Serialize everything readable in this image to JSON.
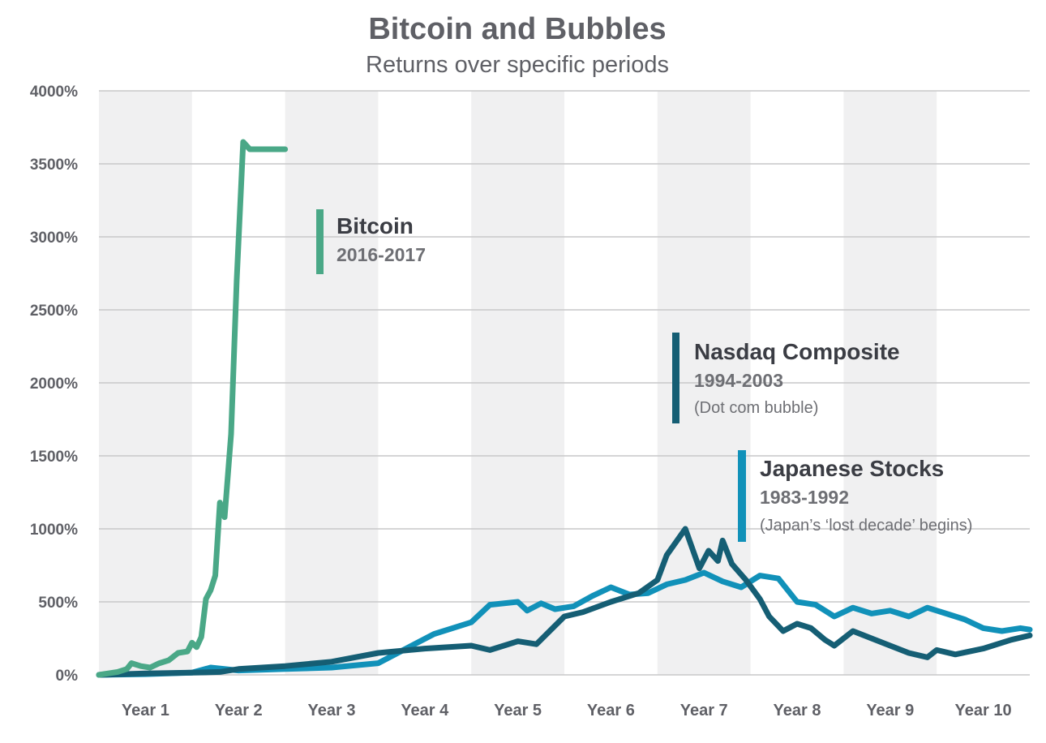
{
  "chart_data": {
    "type": "line",
    "title": "Bitcoin and Bubbles",
    "subtitle": "Returns over specific periods",
    "xlabel": "",
    "ylabel": "",
    "ylim": [
      0,
      4000
    ],
    "xlim": [
      0,
      10
    ],
    "ytick_values": [
      0,
      500,
      1000,
      1500,
      2000,
      2500,
      3000,
      3500,
      4000
    ],
    "ytick_labels": [
      "0%",
      "500%",
      "1000%",
      "1500%",
      "2000%",
      "2500%",
      "3000%",
      "3500%",
      "4000%"
    ],
    "categories": [
      "Year 1",
      "Year 2",
      "Year 3",
      "Year 4",
      "Year 5",
      "Year 6",
      "Year 7",
      "Year 8",
      "Year 9",
      "Year 10"
    ],
    "gridlines": true,
    "shaded_years": [
      "Year 1",
      "Year 3",
      "Year 5",
      "Year 7",
      "Year 9"
    ],
    "series": [
      {
        "name": "Bitcoin",
        "color": "#4aa887",
        "period": "2016-2017",
        "note": "",
        "x": [
          0,
          0.1,
          0.2,
          0.3,
          0.35,
          0.45,
          0.55,
          0.65,
          0.75,
          0.85,
          0.95,
          1.0,
          1.05,
          1.1,
          1.15,
          1.2,
          1.25,
          1.3,
          1.35,
          1.42,
          1.48,
          1.55,
          1.62,
          1.7,
          1.75,
          1.82,
          1.88,
          1.92,
          1.96,
          2.0
        ],
        "values": [
          0,
          10,
          20,
          40,
          80,
          60,
          50,
          80,
          100,
          150,
          160,
          220,
          190,
          260,
          520,
          580,
          680,
          1180,
          1080,
          1650,
          2700,
          3650,
          3600,
          3600,
          3600,
          3600,
          3600,
          3600,
          3600,
          3600
        ]
      },
      {
        "name": "Nasdaq Composite",
        "color": "#155e74",
        "period": "1994-2003",
        "note": "(Dot com bubble)",
        "x": [
          0,
          0.5,
          1.0,
          1.3,
          1.5,
          2.0,
          2.5,
          3.0,
          3.5,
          4.0,
          4.2,
          4.5,
          4.7,
          5.0,
          5.2,
          5.5,
          5.8,
          6.0,
          6.1,
          6.3,
          6.45,
          6.55,
          6.65,
          6.7,
          6.8,
          6.95,
          7.1,
          7.2,
          7.35,
          7.5,
          7.65,
          7.8,
          7.9,
          8.1,
          8.3,
          8.5,
          8.7,
          8.9,
          9.0,
          9.2,
          9.5,
          9.8,
          10.0
        ],
        "values": [
          0,
          10,
          15,
          20,
          40,
          60,
          90,
          150,
          180,
          200,
          170,
          230,
          210,
          400,
          430,
          500,
          560,
          650,
          820,
          1000,
          730,
          850,
          780,
          920,
          760,
          650,
          520,
          400,
          300,
          350,
          320,
          240,
          200,
          300,
          250,
          200,
          150,
          120,
          170,
          140,
          180,
          240,
          270
        ]
      },
      {
        "name": "Japanese Stocks",
        "color": "#1191b9",
        "period": "1983-1992",
        "note": "(Japan’s ‘lost decade’ begins)",
        "x": [
          0,
          0.5,
          1.0,
          1.2,
          1.5,
          2.0,
          2.5,
          3.0,
          3.3,
          3.6,
          4.0,
          4.2,
          4.5,
          4.6,
          4.75,
          4.9,
          5.1,
          5.3,
          5.5,
          5.7,
          5.9,
          6.1,
          6.3,
          6.5,
          6.7,
          6.9,
          7.1,
          7.3,
          7.5,
          7.7,
          7.9,
          8.1,
          8.3,
          8.5,
          8.7,
          8.9,
          9.1,
          9.3,
          9.5,
          9.7,
          9.9,
          10.0
        ],
        "values": [
          0,
          5,
          15,
          50,
          30,
          40,
          50,
          80,
          180,
          280,
          360,
          480,
          500,
          440,
          490,
          450,
          470,
          540,
          600,
          550,
          560,
          620,
          650,
          700,
          640,
          600,
          680,
          660,
          500,
          480,
          400,
          460,
          420,
          440,
          400,
          460,
          420,
          380,
          320,
          300,
          320,
          310
        ]
      }
    ]
  }
}
